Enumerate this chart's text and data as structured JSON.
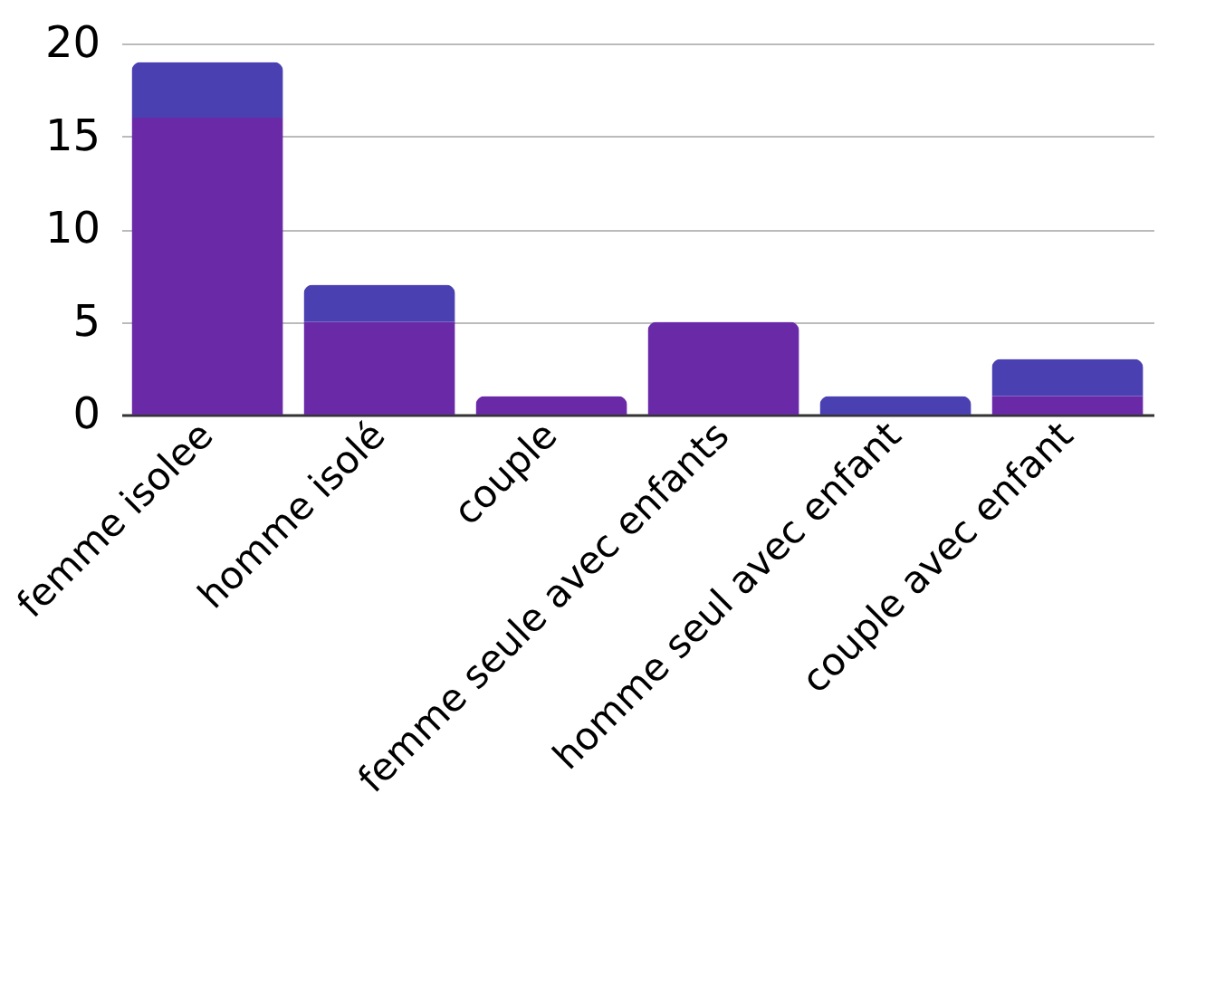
{
  "chart_data": {
    "type": "bar",
    "stacked": true,
    "categories": [
      "femme isolee",
      "homme isolé",
      "couple",
      "femme seule avec enfants",
      "homme seul avec enfant",
      "couple avec enfant"
    ],
    "series": [
      {
        "color": "#6a2aa8",
        "values": [
          16,
          5,
          1,
          5,
          0,
          1
        ]
      },
      {
        "color": "#4b40b2",
        "values": [
          3,
          2,
          0,
          0,
          1,
          2
        ]
      }
    ],
    "ylim": [
      0,
      20
    ],
    "yticks": [
      0,
      5,
      10,
      15,
      20
    ],
    "grid": "y"
  }
}
